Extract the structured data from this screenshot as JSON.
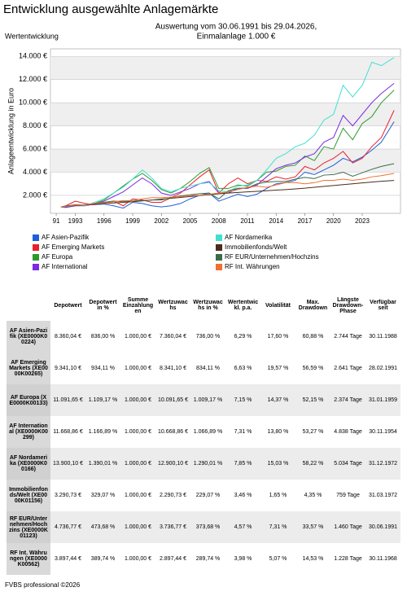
{
  "chart_data": {
    "type": "line",
    "title": "Entwicklung ausgewählte Anlagemärkte",
    "subtitle": [
      "Auswertung vom 30.06.1991 bis 29.04.2026,",
      "Einmalanlage 1.000 €"
    ],
    "section_label": "Wertentwicklung",
    "ylabel": "Anlageentwicklung in Euro",
    "grid": true,
    "x": [
      1991.5,
      1992,
      1993,
      1994,
      1995,
      1996,
      1997,
      1998,
      1999,
      2000,
      2001,
      2002,
      2003,
      2004,
      2005,
      2006,
      2007,
      2008,
      2009,
      2010,
      2011,
      2012,
      2013,
      2014,
      2015,
      2016,
      2017,
      2018,
      2019,
      2020,
      2021,
      2022,
      2023,
      2024,
      2025,
      2026.33
    ],
    "xlim": [
      1990.4,
      2027.0
    ],
    "xticks": [
      {
        "value": 1991,
        "label": "91"
      },
      1993,
      1996,
      1999,
      2002,
      2005,
      2008,
      2011,
      2014,
      2017,
      2020,
      2023
    ],
    "ylim": [
      450,
      14650
    ],
    "yticks": [
      {
        "value": 2000,
        "label": "2.000 €"
      },
      {
        "value": 4000,
        "label": "4.000 €"
      },
      {
        "value": 6000,
        "label": "6.000 €"
      },
      {
        "value": 8000,
        "label": "8.000 €"
      },
      {
        "value": 10000,
        "label": "10.000 €"
      },
      {
        "value": 12000,
        "label": "12.000 €"
      },
      {
        "value": 14000,
        "label": "14.000 €"
      }
    ],
    "series": [
      {
        "name": "AF Asien-Pazifik",
        "color": "#1f5fd6",
        "values": [
          1000,
          950,
          1100,
          1200,
          1200,
          1250,
          1100,
          900,
          1400,
          1300,
          1100,
          1000,
          1100,
          1300,
          1700,
          2000,
          2200,
          1500,
          1800,
          2100,
          1900,
          2100,
          2600,
          3000,
          3100,
          3300,
          4000,
          3800,
          4200,
          4600,
          5200,
          4900,
          5300,
          5900,
          6600,
          8360
        ]
      },
      {
        "name": "AF Emerging Markets",
        "color": "#e8202a",
        "values": [
          1000,
          1100,
          1500,
          1300,
          1200,
          1400,
          1500,
          1100,
          1700,
          1600,
          1400,
          1400,
          1800,
          2200,
          2900,
          3600,
          4200,
          2200,
          3000,
          3500,
          3000,
          3300,
          3200,
          3600,
          3400,
          3600,
          4500,
          4200,
          4800,
          5200,
          5800,
          4800,
          5200,
          6200,
          7000,
          9341
        ]
      },
      {
        "name": "AF Europa",
        "color": "#2a9b2a",
        "values": [
          1000,
          1000,
          1150,
          1150,
          1300,
          1600,
          2200,
          2800,
          3400,
          3900,
          3300,
          2500,
          2200,
          2600,
          3200,
          3900,
          4400,
          2600,
          2600,
          2900,
          2800,
          3300,
          4000,
          4100,
          4500,
          4600,
          5400,
          5000,
          6200,
          6000,
          7800,
          6800,
          8200,
          8800,
          10000,
          11091
        ]
      },
      {
        "name": "AF International",
        "color": "#7b2be0",
        "values": [
          1000,
          1000,
          1100,
          1100,
          1250,
          1500,
          1900,
          2300,
          2900,
          3500,
          3000,
          2200,
          2000,
          2300,
          2600,
          3000,
          3200,
          2200,
          2200,
          2600,
          2600,
          2900,
          3600,
          4300,
          4600,
          4800,
          5300,
          5600,
          6600,
          7000,
          8900,
          8000,
          9000,
          10000,
          10800,
          11668
        ]
      },
      {
        "name": "AF Nordamerika",
        "color": "#40e0d0",
        "values": [
          1000,
          1050,
          1150,
          1100,
          1400,
          1700,
          2200,
          2700,
          3400,
          4200,
          3500,
          2600,
          2300,
          2600,
          2800,
          3000,
          3100,
          2400,
          2300,
          2800,
          2900,
          3300,
          4200,
          5200,
          5600,
          6200,
          6500,
          7200,
          8500,
          9000,
          11500,
          10500,
          11500,
          13500,
          13200,
          13900
        ]
      },
      {
        "name": "Immobilienfonds/Welt",
        "color": "#4a2b1b",
        "values": [
          1000,
          1060,
          1120,
          1180,
          1240,
          1300,
          1350,
          1400,
          1450,
          1520,
          1600,
          1680,
          1750,
          1820,
          1900,
          1980,
          2060,
          2140,
          2200,
          2250,
          2300,
          2350,
          2400,
          2450,
          2500,
          2560,
          2620,
          2700,
          2780,
          2850,
          2930,
          3000,
          3080,
          3150,
          3220,
          3290
        ]
      },
      {
        "name": "RF EUR/Unternehmen/Hochzins",
        "color": "#3c6b4a",
        "values": [
          1000,
          1080,
          1200,
          1180,
          1300,
          1400,
          1500,
          1450,
          1550,
          1550,
          1600,
          1600,
          1800,
          1950,
          2050,
          2150,
          2200,
          1700,
          2400,
          2600,
          2650,
          3000,
          3150,
          3200,
          3200,
          3400,
          3550,
          3450,
          3750,
          3800,
          4000,
          3650,
          3950,
          4250,
          4500,
          4736
        ]
      },
      {
        "name": "RF Int. Währungen",
        "color": "#f07030",
        "values": [
          1000,
          1050,
          1150,
          1200,
          1300,
          1350,
          1450,
          1550,
          1550,
          1700,
          1800,
          1800,
          1850,
          1900,
          2000,
          2000,
          2100,
          2200,
          2300,
          2500,
          2700,
          2800,
          2700,
          2900,
          3100,
          3100,
          3000,
          3100,
          3300,
          3300,
          3400,
          3300,
          3400,
          3600,
          3700,
          3897
        ]
      }
    ]
  },
  "table": {
    "header": [
      "Depotwert",
      "Depotwert in %",
      "Summe Einzahlungen",
      "Wertzuwachs",
      "Wertzuwachs in %",
      "Wertentwickl. p.a.",
      "Volatilität",
      "Max. Drawdown",
      "Längste Drawdown-Phase",
      "Verfügbar seit"
    ],
    "rows": [
      [
        "AF Asien-Pazifik (XE0000K00224)",
        "8.360,04 €",
        "836,00 %",
        "1.000,00 €",
        "7.360,04 €",
        "736,00 %",
        "6,29 %",
        "17,60 %",
        "60,88 %",
        "2.744 Tage",
        "30.11.1988"
      ],
      [
        "AF Emerging Markets (XE0000K00265)",
        "9.341,10 €",
        "934,11 %",
        "1.000,00 €",
        "8.341,10 €",
        "834,11 %",
        "6,63 %",
        "19,57 %",
        "56,59 %",
        "2.641 Tage",
        "28.02.1991"
      ],
      [
        "AF Europa (XE0000K00133)",
        "11.091,65 €",
        "1.109,17 %",
        "1.000,00 €",
        "10.091,65 €",
        "1.009,17 %",
        "7,15 %",
        "14,37 %",
        "52,15 %",
        "2.374 Tage",
        "31.01.1959"
      ],
      [
        "AF International (XE0000K00299)",
        "11.668,86 €",
        "1.166,89 %",
        "1.000,00 €",
        "10.668,86 €",
        "1.066,89 %",
        "7,31 %",
        "13,80 %",
        "53,27 %",
        "4.838 Tage",
        "30.11.1954"
      ],
      [
        "AF Nordamerika (XE0000K00166)",
        "13.900,10 €",
        "1.390,01 %",
        "1.000,00 €",
        "12.900,10 €",
        "1.290,01 %",
        "7,85 %",
        "15,03 %",
        "58,22 %",
        "5.034 Tage",
        "31.12.1972"
      ],
      [
        "Immobilienfonds/Welt (XE0000K01156)",
        "3.290,73 €",
        "329,07 %",
        "1.000,00 €",
        "2.290,73 €",
        "229,07 %",
        "3,46 %",
        "1,65 %",
        "4,35 %",
        "759 Tage",
        "31.03.1972"
      ],
      [
        "RF EUR/Unternehmen/Hochzins (XE0000K01123)",
        "4.736,77 €",
        "473,68 %",
        "1.000,00 €",
        "3.736,77 €",
        "373,68 %",
        "4,57 %",
        "7,31 %",
        "33,57 %",
        "1.460 Tage",
        "30.06.1991"
      ],
      [
        "RF Int. Währungen (XE0000K00562)",
        "3.897,44 €",
        "389,74 %",
        "1.000,00 €",
        "2.897,44 €",
        "289,74 %",
        "3,98 %",
        "5,07 %",
        "14,53 %",
        "1.228 Tage",
        "30.11.1968"
      ]
    ]
  },
  "footer": "FVBS professional ©2026"
}
